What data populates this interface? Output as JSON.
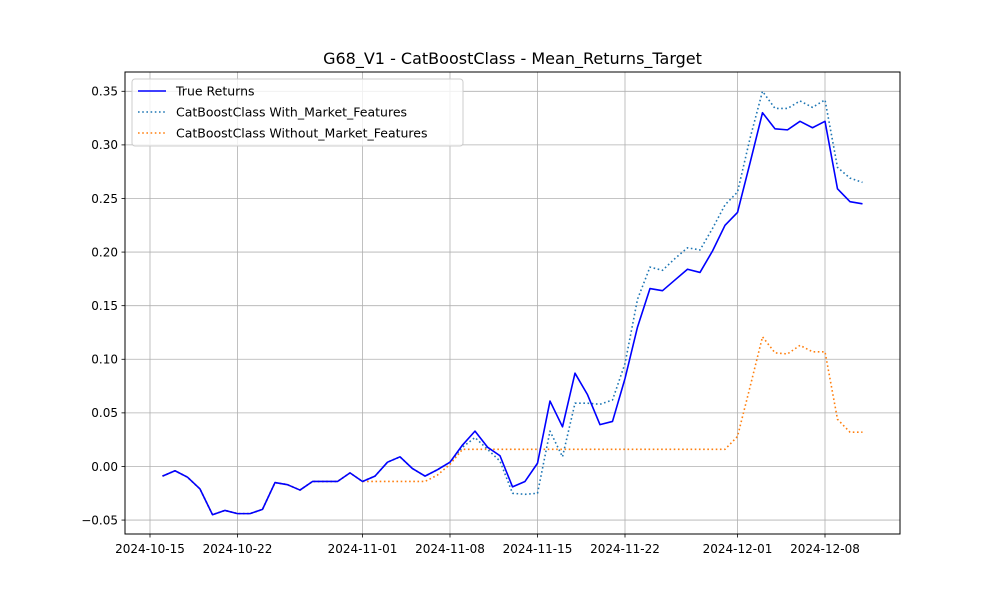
{
  "chart_data": {
    "type": "line",
    "title": "G68_V1 - CatBoostClass - Mean_Returns_Target",
    "xlabel": "",
    "ylabel": "",
    "x_axis_type": "date",
    "xlim": [
      "2024-10-13",
      "2024-12-14"
    ],
    "ylim": [
      -0.063,
      0.368
    ],
    "grid": true,
    "legend_position": "upper-left",
    "x_ticks": [
      "2024-10-15",
      "2024-10-22",
      "2024-11-01",
      "2024-11-08",
      "2024-11-15",
      "2024-11-22",
      "2024-12-01",
      "2024-12-08"
    ],
    "y_ticks": [
      -0.05,
      0.0,
      0.05,
      0.1,
      0.15,
      0.2,
      0.25,
      0.3,
      0.35
    ],
    "y_tick_labels": [
      "−0.05",
      "0.00",
      "0.05",
      "0.10",
      "0.15",
      "0.20",
      "0.25",
      "0.30",
      "0.35"
    ],
    "x": [
      "2024-10-16",
      "2024-10-17",
      "2024-10-18",
      "2024-10-19",
      "2024-10-20",
      "2024-10-21",
      "2024-10-22",
      "2024-10-23",
      "2024-10-24",
      "2024-10-25",
      "2024-10-26",
      "2024-10-27",
      "2024-10-28",
      "2024-10-29",
      "2024-10-30",
      "2024-10-31",
      "2024-11-01",
      "2024-11-02",
      "2024-11-03",
      "2024-11-04",
      "2024-11-05",
      "2024-11-06",
      "2024-11-07",
      "2024-11-08",
      "2024-11-09",
      "2024-11-10",
      "2024-11-11",
      "2024-11-12",
      "2024-11-13",
      "2024-11-14",
      "2024-11-15",
      "2024-11-16",
      "2024-11-17",
      "2024-11-18",
      "2024-11-19",
      "2024-11-20",
      "2024-11-21",
      "2024-11-22",
      "2024-11-23",
      "2024-11-24",
      "2024-11-25",
      "2024-11-26",
      "2024-11-27",
      "2024-11-28",
      "2024-11-29",
      "2024-11-30",
      "2024-12-01",
      "2024-12-02",
      "2024-12-03",
      "2024-12-04",
      "2024-12-05",
      "2024-12-06",
      "2024-12-07",
      "2024-12-08",
      "2024-12-09",
      "2024-12-10",
      "2024-12-11"
    ],
    "series": [
      {
        "name": "True Returns",
        "color": "#0000ff",
        "style": "solid",
        "values": [
          -0.009,
          -0.004,
          -0.01,
          -0.021,
          -0.045,
          -0.041,
          -0.044,
          -0.044,
          -0.04,
          -0.015,
          -0.017,
          -0.022,
          -0.014,
          -0.014,
          -0.014,
          -0.006,
          -0.014,
          -0.009,
          0.004,
          0.009,
          -0.002,
          -0.009,
          -0.003,
          0.004,
          0.02,
          0.033,
          0.018,
          0.01,
          -0.019,
          -0.014,
          0.003,
          0.061,
          0.037,
          0.087,
          0.067,
          0.039,
          0.042,
          0.082,
          0.13,
          0.166,
          0.164,
          0.174,
          0.184,
          0.181,
          0.201,
          0.225,
          0.237,
          0.283,
          0.33,
          0.315,
          0.314,
          0.322,
          0.316,
          0.322,
          0.259,
          0.247,
          0.245
        ]
      },
      {
        "name": "CatBoostClass With_Market_Features",
        "color": "#1f77b4",
        "style": "dotted",
        "values": [
          -0.009,
          -0.004,
          -0.01,
          -0.021,
          -0.045,
          -0.041,
          -0.044,
          -0.044,
          -0.04,
          -0.015,
          -0.017,
          -0.022,
          -0.014,
          -0.014,
          -0.014,
          -0.006,
          -0.014,
          -0.009,
          0.004,
          0.009,
          -0.002,
          -0.009,
          -0.003,
          0.004,
          0.018,
          0.027,
          0.016,
          0.005,
          -0.025,
          -0.026,
          -0.025,
          0.033,
          0.009,
          0.059,
          0.059,
          0.058,
          0.062,
          0.096,
          0.156,
          0.186,
          0.183,
          0.194,
          0.204,
          0.202,
          0.222,
          0.244,
          0.256,
          0.306,
          0.35,
          0.334,
          0.334,
          0.341,
          0.335,
          0.342,
          0.279,
          0.269,
          0.265
        ]
      },
      {
        "name": "CatBoostClass Without_Market_Features",
        "color": "#ff7f0e",
        "style": "dotted",
        "values": [
          -0.009,
          -0.004,
          -0.01,
          -0.021,
          -0.045,
          -0.041,
          -0.044,
          -0.044,
          -0.04,
          -0.015,
          -0.017,
          -0.022,
          -0.014,
          -0.014,
          -0.014,
          -0.006,
          -0.014,
          -0.014,
          -0.014,
          -0.014,
          -0.014,
          -0.014,
          -0.008,
          0.002,
          0.016,
          0.016,
          0.016,
          0.016,
          0.016,
          0.016,
          0.016,
          0.016,
          0.016,
          0.016,
          0.016,
          0.016,
          0.016,
          0.016,
          0.016,
          0.016,
          0.016,
          0.016,
          0.016,
          0.016,
          0.016,
          0.016,
          0.028,
          0.074,
          0.121,
          0.106,
          0.105,
          0.113,
          0.107,
          0.107,
          0.044,
          0.032,
          0.032
        ]
      }
    ]
  }
}
